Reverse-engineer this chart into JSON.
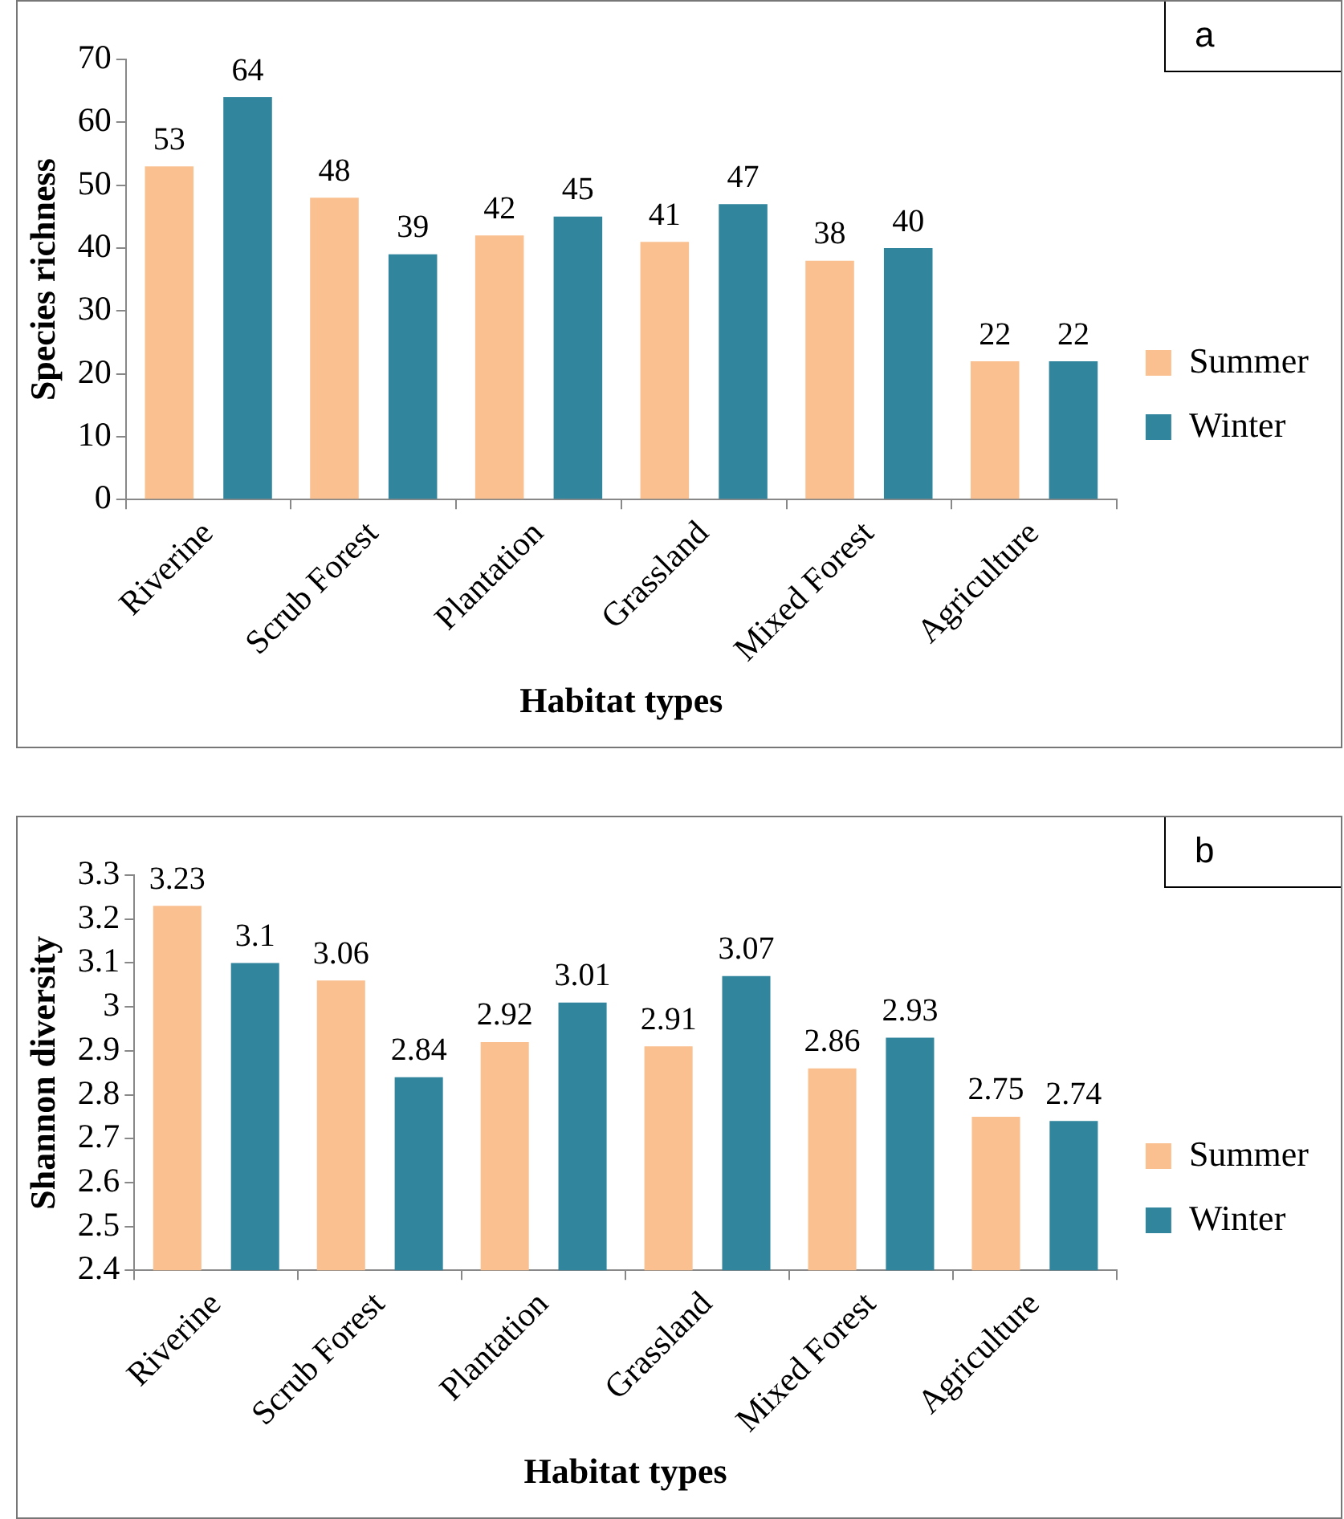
{
  "chart_data": [
    {
      "type": "bar",
      "annotations": [
        "a"
      ],
      "xlabel": "Habitat types",
      "ylabel": "Species richness",
      "categories": [
        "Riverine",
        "Scrub Forest",
        "Plantation",
        "Grassland",
        "Mixed Forest",
        "Agriculture"
      ],
      "series": [
        {
          "name": "Summer",
          "color": "#fac090",
          "values": [
            53,
            48,
            42,
            41,
            38,
            22
          ]
        },
        {
          "name": "Winter",
          "color": "#31859c",
          "values": [
            64,
            39,
            45,
            47,
            40,
            22
          ]
        }
      ],
      "ylim": [
        0,
        70
      ],
      "yticks": [
        0,
        10,
        20,
        30,
        40,
        50,
        60,
        70
      ],
      "grid": false,
      "legend": "right",
      "data_labels": true
    },
    {
      "type": "bar",
      "annotations": [
        "b"
      ],
      "xlabel": "Habitat types",
      "ylabel": "Shannon diversity",
      "categories": [
        "Riverine",
        "Scrub Forest",
        "Plantation",
        "Grassland",
        "Mixed Forest",
        "Agriculture"
      ],
      "series": [
        {
          "name": "Summer",
          "color": "#fac090",
          "values": [
            3.23,
            3.06,
            2.92,
            2.91,
            2.86,
            2.75
          ]
        },
        {
          "name": "Winter",
          "color": "#31859c",
          "values": [
            3.1,
            2.84,
            3.01,
            3.07,
            2.93,
            2.74
          ]
        }
      ],
      "ylim": [
        2.4,
        3.3
      ],
      "yticks": [
        2.4,
        2.5,
        2.6,
        2.7,
        2.8,
        2.9,
        3,
        3.1,
        3.2,
        3.3
      ],
      "grid": false,
      "legend": "right",
      "data_labels": true
    }
  ]
}
